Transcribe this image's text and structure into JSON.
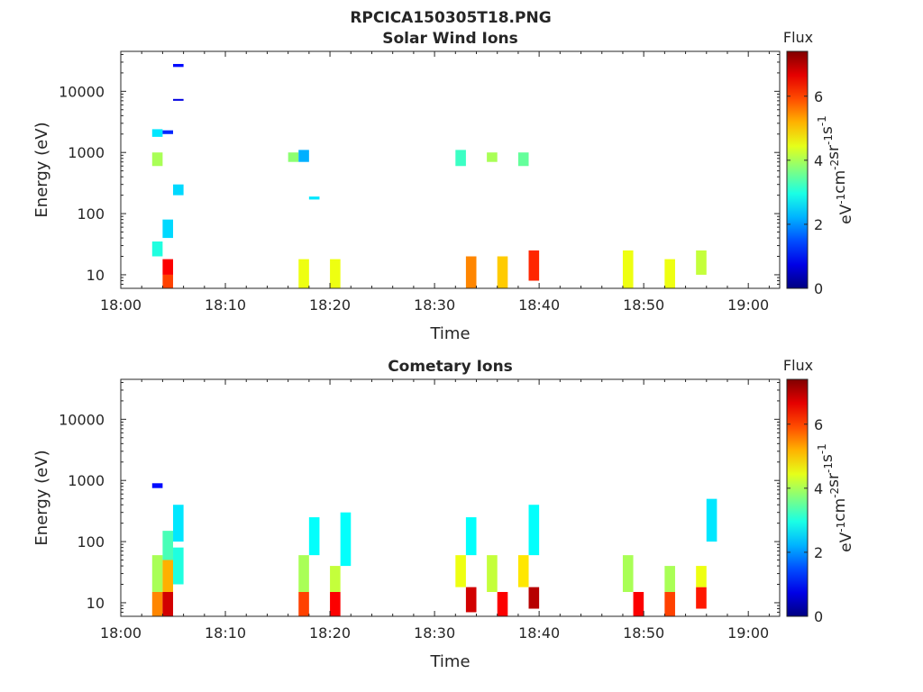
{
  "figure_title": "RPCICA150305T18.PNG",
  "chart_data": [
    {
      "type": "heatmap",
      "title": "Solar Wind Ions",
      "xlabel": "Time",
      "ylabel": "Energy (eV)",
      "yscale": "log",
      "xlim": [
        "18:00",
        "19:03"
      ],
      "ylim": [
        6,
        45000
      ],
      "x_ticks": [
        "18:00",
        "18:10",
        "18:20",
        "18:30",
        "18:40",
        "18:50",
        "19:00"
      ],
      "y_ticks": [
        10,
        100,
        1000,
        10000
      ],
      "y_tick_labels": [
        "10",
        "100",
        "1000",
        "10000"
      ],
      "grid": false,
      "colorbar": {
        "label": "Flux",
        "units_base": [
          "eV",
          "cm",
          "sr",
          "s"
        ],
        "units_exp": [
          "-1",
          "-2",
          "-1",
          "-1"
        ],
        "ticks": [
          0,
          2,
          4,
          6
        ],
        "tick_labels": [
          "0",
          "2",
          "4",
          "6"
        ],
        "range": [
          0,
          7.4
        ],
        "colormap": "jet"
      },
      "cells": [
        {
          "t": "18:03",
          "e_min": 20,
          "e_max": 35,
          "flux": 3.0
        },
        {
          "t": "18:03",
          "e_min": 600,
          "e_max": 1000,
          "flux": 4.0
        },
        {
          "t": "18:03",
          "e_min": 1800,
          "e_max": 2400,
          "flux": 2.6
        },
        {
          "t": "18:04",
          "e_min": 6,
          "e_max": 10,
          "flux": 6.0
        },
        {
          "t": "18:04",
          "e_min": 10,
          "e_max": 18,
          "flux": 6.5
        },
        {
          "t": "18:04",
          "e_min": 40,
          "e_max": 80,
          "flux": 2.5
        },
        {
          "t": "18:04",
          "e_min": 2000,
          "e_max": 2300,
          "flux": 1.2
        },
        {
          "t": "18:05",
          "e_min": 200,
          "e_max": 300,
          "flux": 2.5
        },
        {
          "t": "18:05",
          "e_min": 7000,
          "e_max": 7500,
          "flux": 0.7
        },
        {
          "t": "18:05",
          "e_min": 25000,
          "e_max": 28000,
          "flux": 1.0
        },
        {
          "t": "18:16",
          "e_min": 700,
          "e_max": 1000,
          "flux": 3.8
        },
        {
          "t": "18:17",
          "e_min": 6,
          "e_max": 18,
          "flux": 4.5
        },
        {
          "t": "18:17",
          "e_min": 700,
          "e_max": 1100,
          "flux": 2.2
        },
        {
          "t": "18:18",
          "e_min": 170,
          "e_max": 190,
          "flux": 2.6
        },
        {
          "t": "18:20",
          "e_min": 6,
          "e_max": 18,
          "flux": 4.5
        },
        {
          "t": "18:33",
          "e_min": 6,
          "e_max": 20,
          "flux": 5.5
        },
        {
          "t": "18:32",
          "e_min": 600,
          "e_max": 1100,
          "flux": 3.2
        },
        {
          "t": "18:35",
          "e_min": 700,
          "e_max": 1000,
          "flux": 4.0
        },
        {
          "t": "18:36",
          "e_min": 6,
          "e_max": 20,
          "flux": 5.0
        },
        {
          "t": "18:38",
          "e_min": 600,
          "e_max": 1000,
          "flux": 3.5
        },
        {
          "t": "18:39",
          "e_min": 8,
          "e_max": 25,
          "flux": 6.2
        },
        {
          "t": "18:48",
          "e_min": 6,
          "e_max": 25,
          "flux": 4.5
        },
        {
          "t": "18:52",
          "e_min": 6,
          "e_max": 18,
          "flux": 4.5
        },
        {
          "t": "18:55",
          "e_min": 10,
          "e_max": 25,
          "flux": 4.2
        }
      ]
    },
    {
      "type": "heatmap",
      "title": "Cometary Ions",
      "xlabel": "Time",
      "ylabel": "Energy (eV)",
      "yscale": "log",
      "xlim": [
        "18:00",
        "19:03"
      ],
      "ylim": [
        6,
        45000
      ],
      "x_ticks": [
        "18:00",
        "18:10",
        "18:20",
        "18:30",
        "18:40",
        "18:50",
        "19:00"
      ],
      "y_ticks": [
        10,
        100,
        1000,
        10000
      ],
      "y_tick_labels": [
        "10",
        "100",
        "1000",
        "10000"
      ],
      "grid": false,
      "colorbar": {
        "label": "Flux",
        "units_base": [
          "eV",
          "cm",
          "sr",
          "s"
        ],
        "units_exp": [
          "-1",
          "-2",
          "-1",
          "-1"
        ],
        "ticks": [
          0,
          2,
          4,
          6
        ],
        "tick_labels": [
          "0",
          "2",
          "4",
          "6"
        ],
        "range": [
          0,
          7.4
        ],
        "colormap": "jet"
      },
      "cells": [
        {
          "t": "18:03",
          "e_min": 6,
          "e_max": 15,
          "flux": 5.5
        },
        {
          "t": "18:03",
          "e_min": 15,
          "e_max": 60,
          "flux": 4.0
        },
        {
          "t": "18:03",
          "e_min": 750,
          "e_max": 900,
          "flux": 1.0
        },
        {
          "t": "18:04",
          "e_min": 6,
          "e_max": 15,
          "flux": 6.8
        },
        {
          "t": "18:04",
          "e_min": 15,
          "e_max": 50,
          "flux": 5.2
        },
        {
          "t": "18:04",
          "e_min": 50,
          "e_max": 150,
          "flux": 3.3
        },
        {
          "t": "18:05",
          "e_min": 20,
          "e_max": 80,
          "flux": 3.0
        },
        {
          "t": "18:05",
          "e_min": 100,
          "e_max": 400,
          "flux": 2.6
        },
        {
          "t": "18:17",
          "e_min": 6,
          "e_max": 15,
          "flux": 6.0
        },
        {
          "t": "18:17",
          "e_min": 15,
          "e_max": 60,
          "flux": 4.0
        },
        {
          "t": "18:18",
          "e_min": 60,
          "e_max": 250,
          "flux": 2.8
        },
        {
          "t": "18:20",
          "e_min": 6,
          "e_max": 15,
          "flux": 6.5
        },
        {
          "t": "18:20",
          "e_min": 15,
          "e_max": 40,
          "flux": 4.2
        },
        {
          "t": "18:21",
          "e_min": 40,
          "e_max": 300,
          "flux": 2.8
        },
        {
          "t": "18:33",
          "e_min": 7,
          "e_max": 18,
          "flux": 6.8
        },
        {
          "t": "18:32",
          "e_min": 18,
          "e_max": 60,
          "flux": 4.5
        },
        {
          "t": "18:33",
          "e_min": 60,
          "e_max": 250,
          "flux": 2.8
        },
        {
          "t": "18:36",
          "e_min": 6,
          "e_max": 15,
          "flux": 6.5
        },
        {
          "t": "18:35",
          "e_min": 15,
          "e_max": 60,
          "flux": 4.2
        },
        {
          "t": "18:39",
          "e_min": 8,
          "e_max": 18,
          "flux": 7.0
        },
        {
          "t": "18:38",
          "e_min": 18,
          "e_max": 60,
          "flux": 4.8
        },
        {
          "t": "18:39",
          "e_min": 60,
          "e_max": 400,
          "flux": 2.8
        },
        {
          "t": "18:49",
          "e_min": 6,
          "e_max": 15,
          "flux": 6.5
        },
        {
          "t": "18:48",
          "e_min": 15,
          "e_max": 60,
          "flux": 4.0
        },
        {
          "t": "18:52",
          "e_min": 6,
          "e_max": 15,
          "flux": 6.0
        },
        {
          "t": "18:52",
          "e_min": 15,
          "e_max": 40,
          "flux": 4.0
        },
        {
          "t": "18:55",
          "e_min": 8,
          "e_max": 18,
          "flux": 6.3
        },
        {
          "t": "18:55",
          "e_min": 18,
          "e_max": 40,
          "flux": 4.5
        },
        {
          "t": "18:56",
          "e_min": 100,
          "e_max": 500,
          "flux": 2.6
        }
      ]
    }
  ]
}
